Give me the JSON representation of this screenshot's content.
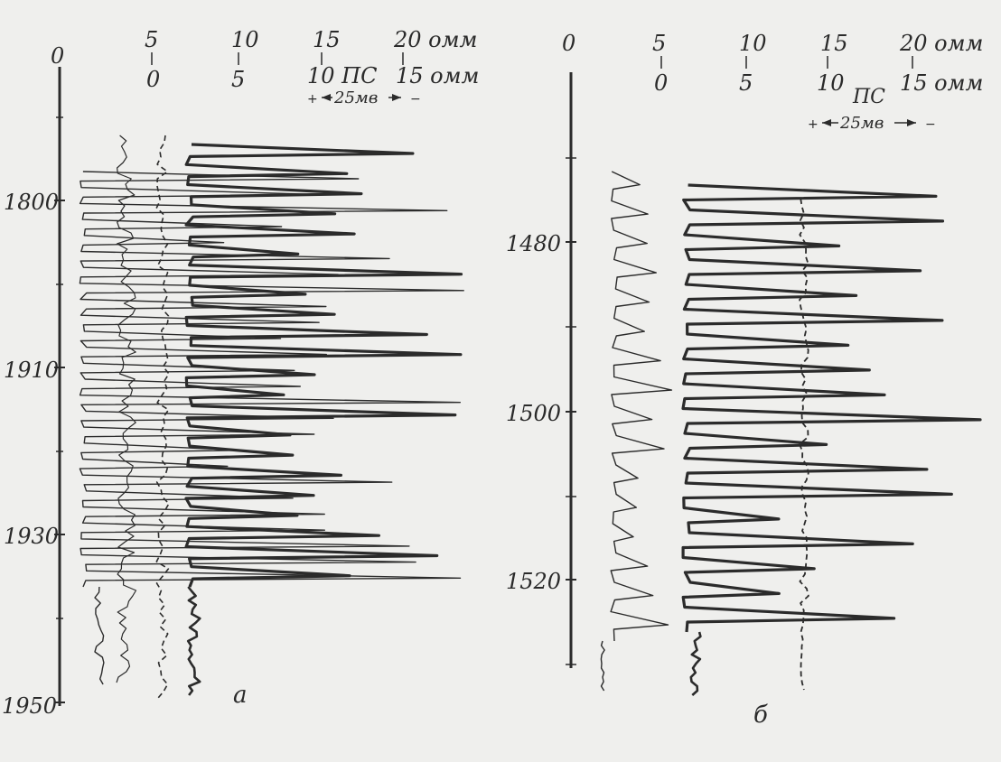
{
  "panel_a": {
    "letter": "а",
    "scale_row1": [
      "0",
      "5",
      "10",
      "15",
      "20 омм"
    ],
    "scale_row2": [
      "0",
      "5",
      "10 ПС",
      "15 омм"
    ],
    "sp_scale": [
      "+",
      "25мв",
      "−"
    ],
    "depth_ticks": [
      "1800",
      "1910",
      "1930",
      "1950"
    ]
  },
  "panel_b": {
    "letter": "б",
    "scale_row1": [
      "0",
      "5",
      "10",
      "15",
      "20 омм"
    ],
    "scale_row2": [
      "0",
      "5",
      "10",
      "15 омм"
    ],
    "sp_label": "ПС",
    "sp_scale": [
      "+",
      "25мв",
      "−"
    ],
    "depth_ticks": [
      "1480",
      "1500",
      "1520"
    ]
  },
  "colors": {
    "ink": "#2b2b2b",
    "paper": "#efefed"
  }
}
